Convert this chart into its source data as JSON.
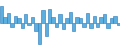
{
  "values": [
    6.0,
    2.0,
    3.5,
    -1.5,
    2.5,
    1.5,
    -2.0,
    3.0,
    -1.0,
    2.0,
    -3.0,
    -8.0,
    4.5,
    -5.0,
    5.0,
    2.0,
    -1.5,
    3.0,
    -2.5,
    1.5,
    4.0,
    -3.0,
    2.0,
    1.5,
    -1.5,
    3.5,
    -2.0,
    2.5,
    -1.5,
    2.0,
    3.0,
    -2.0,
    1.5,
    2.5,
    -1.0
  ],
  "bar_color": "#5baee0",
  "edge_color": "#2a7ab8",
  "background_color": "#ffffff",
  "n_bars": 35
}
